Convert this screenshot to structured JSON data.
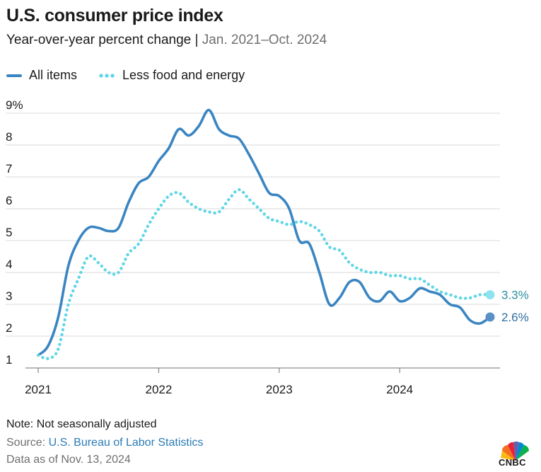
{
  "header": {
    "title": "U.S. consumer price index",
    "subtitle_main": "Year-over-year percent change",
    "subtitle_sep": " | ",
    "subtitle_range": "Jan. 2021–Oct. 2024"
  },
  "legend": {
    "all_items": "All items",
    "core": "Less food and energy"
  },
  "colors": {
    "all_items": "#3a85c2",
    "core": "#5fd6e6",
    "grid": "#d9d9d9",
    "axis": "#6f6f6f"
  },
  "chart_data": {
    "type": "line",
    "title": "U.S. consumer price index",
    "subtitle": "Year-over-year percent change | Jan. 2021–Oct. 2024",
    "ylim": [
      1,
      9
    ],
    "y_ticks": [
      "1",
      "2",
      "3",
      "4",
      "5",
      "6",
      "7",
      "8",
      "9%"
    ],
    "x_ticks": [
      "2021",
      "2022",
      "2023",
      "2024"
    ],
    "grid": true,
    "legend_position": "top-left",
    "x": [
      "2021-01",
      "2021-02",
      "2021-03",
      "2021-04",
      "2021-05",
      "2021-06",
      "2021-07",
      "2021-08",
      "2021-09",
      "2021-10",
      "2021-11",
      "2021-12",
      "2022-01",
      "2022-02",
      "2022-03",
      "2022-04",
      "2022-05",
      "2022-06",
      "2022-07",
      "2022-08",
      "2022-09",
      "2022-10",
      "2022-11",
      "2022-12",
      "2023-01",
      "2023-02",
      "2023-03",
      "2023-04",
      "2023-05",
      "2023-06",
      "2023-07",
      "2023-08",
      "2023-09",
      "2023-10",
      "2023-11",
      "2023-12",
      "2024-01",
      "2024-02",
      "2024-03",
      "2024-04",
      "2024-05",
      "2024-06",
      "2024-07",
      "2024-08",
      "2024-09",
      "2024-10"
    ],
    "series": [
      {
        "name": "All items",
        "end_label": "2.6%",
        "values": [
          1.4,
          1.7,
          2.6,
          4.2,
          5.0,
          5.4,
          5.4,
          5.3,
          5.4,
          6.2,
          6.8,
          7.0,
          7.5,
          7.9,
          8.5,
          8.3,
          8.6,
          9.1,
          8.5,
          8.3,
          8.2,
          7.7,
          7.1,
          6.5,
          6.4,
          6.0,
          5.0,
          4.9,
          4.0,
          3.0,
          3.2,
          3.7,
          3.7,
          3.2,
          3.1,
          3.4,
          3.1,
          3.2,
          3.5,
          3.4,
          3.3,
          3.0,
          2.9,
          2.5,
          2.4,
          2.6
        ]
      },
      {
        "name": "Less food and energy",
        "end_label": "3.3%",
        "values": [
          1.4,
          1.3,
          1.6,
          3.0,
          3.8,
          4.5,
          4.3,
          4.0,
          4.0,
          4.6,
          4.9,
          5.5,
          6.0,
          6.4,
          6.5,
          6.2,
          6.0,
          5.9,
          5.9,
          6.3,
          6.6,
          6.3,
          6.0,
          5.7,
          5.6,
          5.5,
          5.6,
          5.5,
          5.3,
          4.8,
          4.7,
          4.3,
          4.1,
          4.0,
          4.0,
          3.9,
          3.9,
          3.8,
          3.8,
          3.6,
          3.4,
          3.3,
          3.2,
          3.2,
          3.3,
          3.3
        ]
      }
    ]
  },
  "footer": {
    "note": "Note: Not seasonally adjusted",
    "source_prefix": "Source: ",
    "source_link": "U.S. Bureau of Labor Statistics",
    "as_of": "Data as of Nov. 13, 2024"
  },
  "logo": {
    "text": "CNBC",
    "icon": "cnbc-peacock-logo"
  }
}
